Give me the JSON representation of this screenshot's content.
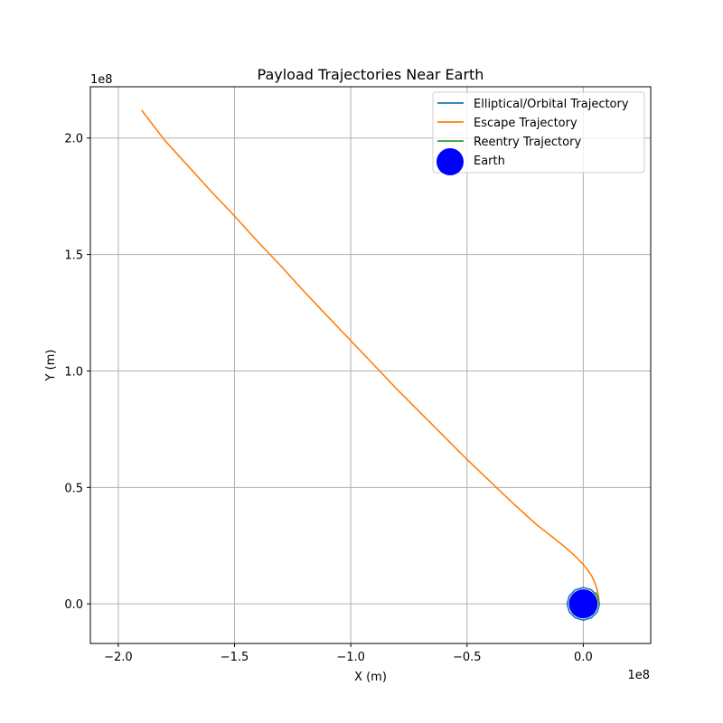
{
  "chart_data": {
    "type": "line",
    "title": "Payload Trajectories Near Earth",
    "xlabel": "X (m)",
    "ylabel": "Y (m)",
    "x_offset_label": "1e8",
    "y_offset_label": "1e8",
    "xlim": [
      -2.12,
      0.29
    ],
    "ylim": [
      -0.17,
      2.22
    ],
    "scale": 100000000,
    "x_ticks": [
      {
        "value": -2.0,
        "label": "−2.0"
      },
      {
        "value": -1.5,
        "label": "−1.5"
      },
      {
        "value": -1.0,
        "label": "−1.0"
      },
      {
        "value": -0.5,
        "label": "−0.5"
      },
      {
        "value": 0.0,
        "label": "0.0"
      }
    ],
    "y_ticks": [
      {
        "value": 0.0,
        "label": "0.0"
      },
      {
        "value": 0.5,
        "label": "0.5"
      },
      {
        "value": 1.0,
        "label": "1.0"
      },
      {
        "value": 1.5,
        "label": "1.5"
      },
      {
        "value": 2.0,
        "label": "2.0"
      }
    ],
    "grid": true,
    "legend_position": "top-right",
    "series": [
      {
        "name": "Elliptical/Orbital Trajectory",
        "color": "#1f77b4",
        "kind": "line",
        "x": [
          0.07,
          0.06,
          0.035,
          0.0,
          -0.035,
          -0.06,
          -0.07,
          -0.06,
          -0.035,
          0.0,
          0.035,
          0.06,
          0.07
        ],
        "y": [
          0.0,
          0.035,
          0.06,
          0.07,
          0.06,
          0.035,
          0.0,
          -0.035,
          -0.06,
          -0.07,
          -0.06,
          -0.035,
          0.0
        ]
      },
      {
        "name": "Escape Trajectory",
        "color": "#ff7f0e",
        "kind": "line",
        "x": [
          0.068,
          0.066,
          0.06,
          0.05,
          0.036,
          0.016,
          -0.01,
          -0.04,
          -0.08,
          -0.13,
          -0.2,
          -0.3,
          -0.4,
          -0.5,
          -0.6,
          -0.7,
          -0.8,
          -0.9,
          -1.0,
          -1.1,
          -1.2,
          -1.3,
          -1.4,
          -1.5,
          -1.6,
          -1.7,
          -1.8,
          -1.9
        ],
        "y": [
          0.0,
          0.03,
          0.06,
          0.09,
          0.12,
          0.15,
          0.18,
          0.21,
          0.245,
          0.285,
          0.34,
          0.43,
          0.525,
          0.62,
          0.72,
          0.82,
          0.92,
          1.025,
          1.13,
          1.235,
          1.34,
          1.45,
          1.555,
          1.665,
          1.77,
          1.88,
          1.99,
          2.12
        ]
      },
      {
        "name": "Reentry Trajectory",
        "color": "#2ca02c",
        "kind": "line",
        "x": [
          0.068,
          0.065,
          0.06,
          0.055,
          0.05
        ],
        "y": [
          0.0,
          0.02,
          0.035,
          0.045,
          0.05
        ]
      },
      {
        "name": "Earth",
        "color": "#0000ff",
        "kind": "marker",
        "x": [
          0.0
        ],
        "y": [
          0.0
        ]
      }
    ]
  }
}
